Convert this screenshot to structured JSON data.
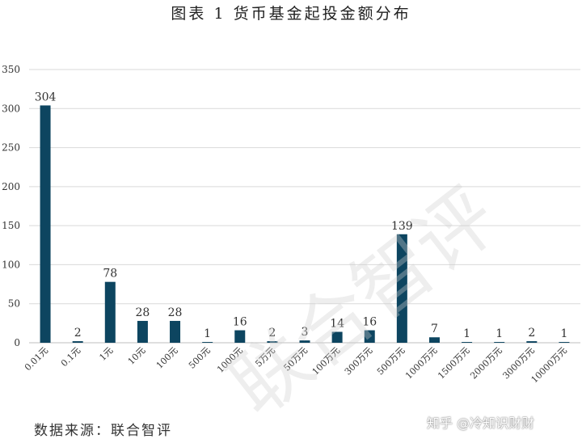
{
  "title": "图表 1 货币基金起投金额分布",
  "source": "数据来源：联合智评",
  "attribution": "知乎 @冷知识财财",
  "watermark": "联合智评",
  "colors": {
    "bar": "#0d4560",
    "grid": "#d9d9d9",
    "axis": "#bfbfbf",
    "text": "#333333"
  },
  "chart_data": {
    "type": "bar",
    "title": "图表 1 货币基金起投金额分布",
    "xlabel": "",
    "ylabel": "",
    "ylim": [
      0,
      350
    ],
    "yticks": [
      0,
      50,
      100,
      150,
      200,
      250,
      300,
      350
    ],
    "grid": true,
    "categories": [
      "0.01元",
      "0.1元",
      "1元",
      "10元",
      "100元",
      "500元",
      "1000元",
      "5万元",
      "50万元",
      "100万元",
      "300万元",
      "500万元",
      "1000万元",
      "1500万元",
      "2000万元",
      "3000万元",
      "10000万元"
    ],
    "values": [
      304,
      2,
      78,
      28,
      28,
      1,
      16,
      2,
      3,
      14,
      16,
      139,
      7,
      1,
      1,
      2,
      1
    ]
  }
}
